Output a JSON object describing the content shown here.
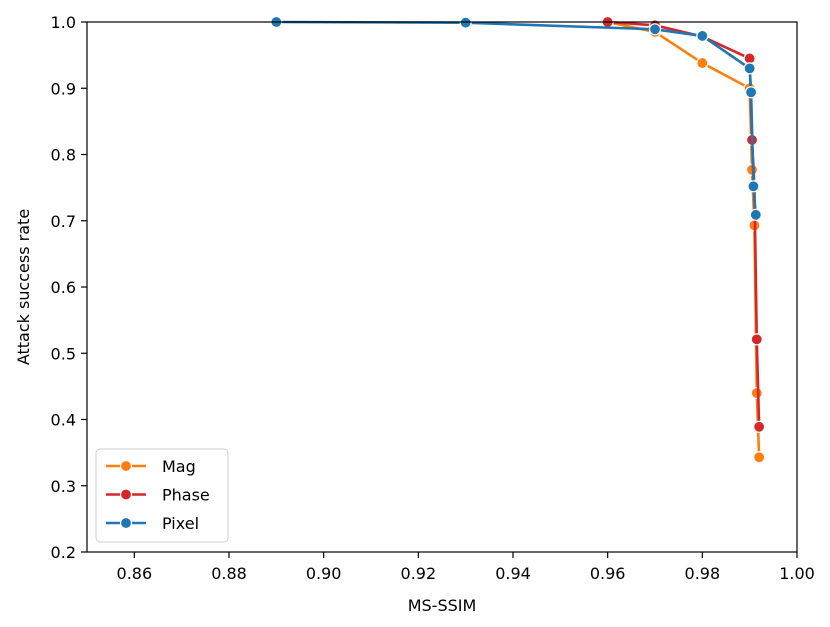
{
  "chart_data": {
    "type": "line",
    "xlabel": "MS-SSIM",
    "ylabel": "Attack success rate",
    "xlim": [
      0.85,
      1.0
    ],
    "ylim": [
      0.2,
      1.0
    ],
    "xticks": [
      "0.86",
      "0.88",
      "0.90",
      "0.92",
      "0.94",
      "0.96",
      "0.98",
      "1.00"
    ],
    "yticks": [
      "0.2",
      "0.3",
      "0.4",
      "0.5",
      "0.6",
      "0.7",
      "0.8",
      "0.9",
      "1.0"
    ],
    "xtick_values": [
      0.86,
      0.88,
      0.9,
      0.92,
      0.94,
      0.96,
      0.98,
      1.0
    ],
    "ytick_values": [
      0.2,
      0.3,
      0.4,
      0.5,
      0.6,
      0.7,
      0.8,
      0.9,
      1.0
    ],
    "legend_position": "lower left",
    "series": [
      {
        "name": "Mag",
        "color": "#ff7f0e",
        "x": [
          0.96,
          0.97,
          0.98,
          0.99,
          0.9905,
          0.991,
          0.9915,
          0.992
        ],
        "y": [
          1.0,
          0.985,
          0.938,
          0.9,
          0.777,
          0.693,
          0.44,
          0.343
        ]
      },
      {
        "name": "Phase",
        "color": "#d62728",
        "x": [
          0.96,
          0.97,
          0.98,
          0.99,
          0.9905,
          0.991,
          0.9915,
          0.992
        ],
        "y": [
          1.0,
          0.995,
          0.978,
          0.945,
          0.822,
          0.753,
          0.521,
          0.389
        ]
      },
      {
        "name": "Pixel",
        "color": "#1f77b4",
        "x": [
          0.89,
          0.93,
          0.97,
          0.98,
          0.99,
          0.9903,
          0.9908,
          0.9913
        ],
        "y": [
          1.0,
          0.999,
          0.989,
          0.979,
          0.93,
          0.894,
          0.752,
          0.709
        ]
      }
    ]
  }
}
